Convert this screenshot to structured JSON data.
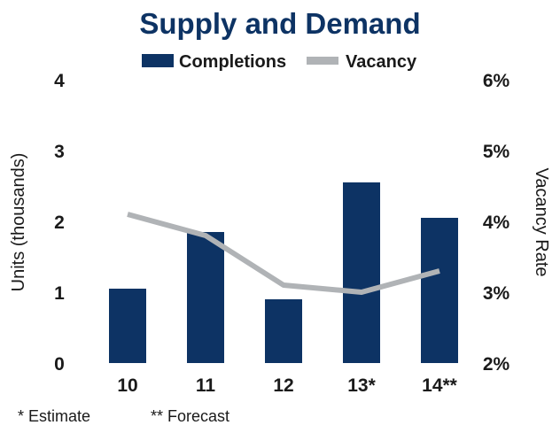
{
  "chart_data": {
    "type": "bar",
    "title": "Supply and Demand",
    "categories": [
      "10",
      "11",
      "12",
      "13*",
      "14**"
    ],
    "series": [
      {
        "name": "Completions",
        "type": "bar",
        "axis": "left",
        "color": "#0d3364",
        "values": [
          1.05,
          1.85,
          0.9,
          2.55,
          2.05
        ]
      },
      {
        "name": "Vacancy",
        "type": "line",
        "axis": "right",
        "color": "#b0b3b6",
        "values": [
          4.1,
          3.8,
          3.1,
          3.0,
          3.3
        ]
      }
    ],
    "ylabel": "Units (thousands)",
    "y2label": "Vacancy Rate",
    "ylim": [
      0,
      4
    ],
    "y2lim": [
      2,
      6
    ],
    "yticks": [
      "0",
      "1",
      "2",
      "3",
      "4"
    ],
    "y2ticks": [
      "2%",
      "3%",
      "4%",
      "5%",
      "6%"
    ],
    "legend_position": "top",
    "grid": false
  },
  "notes": [
    "* Estimate",
    "** Forecast"
  ]
}
